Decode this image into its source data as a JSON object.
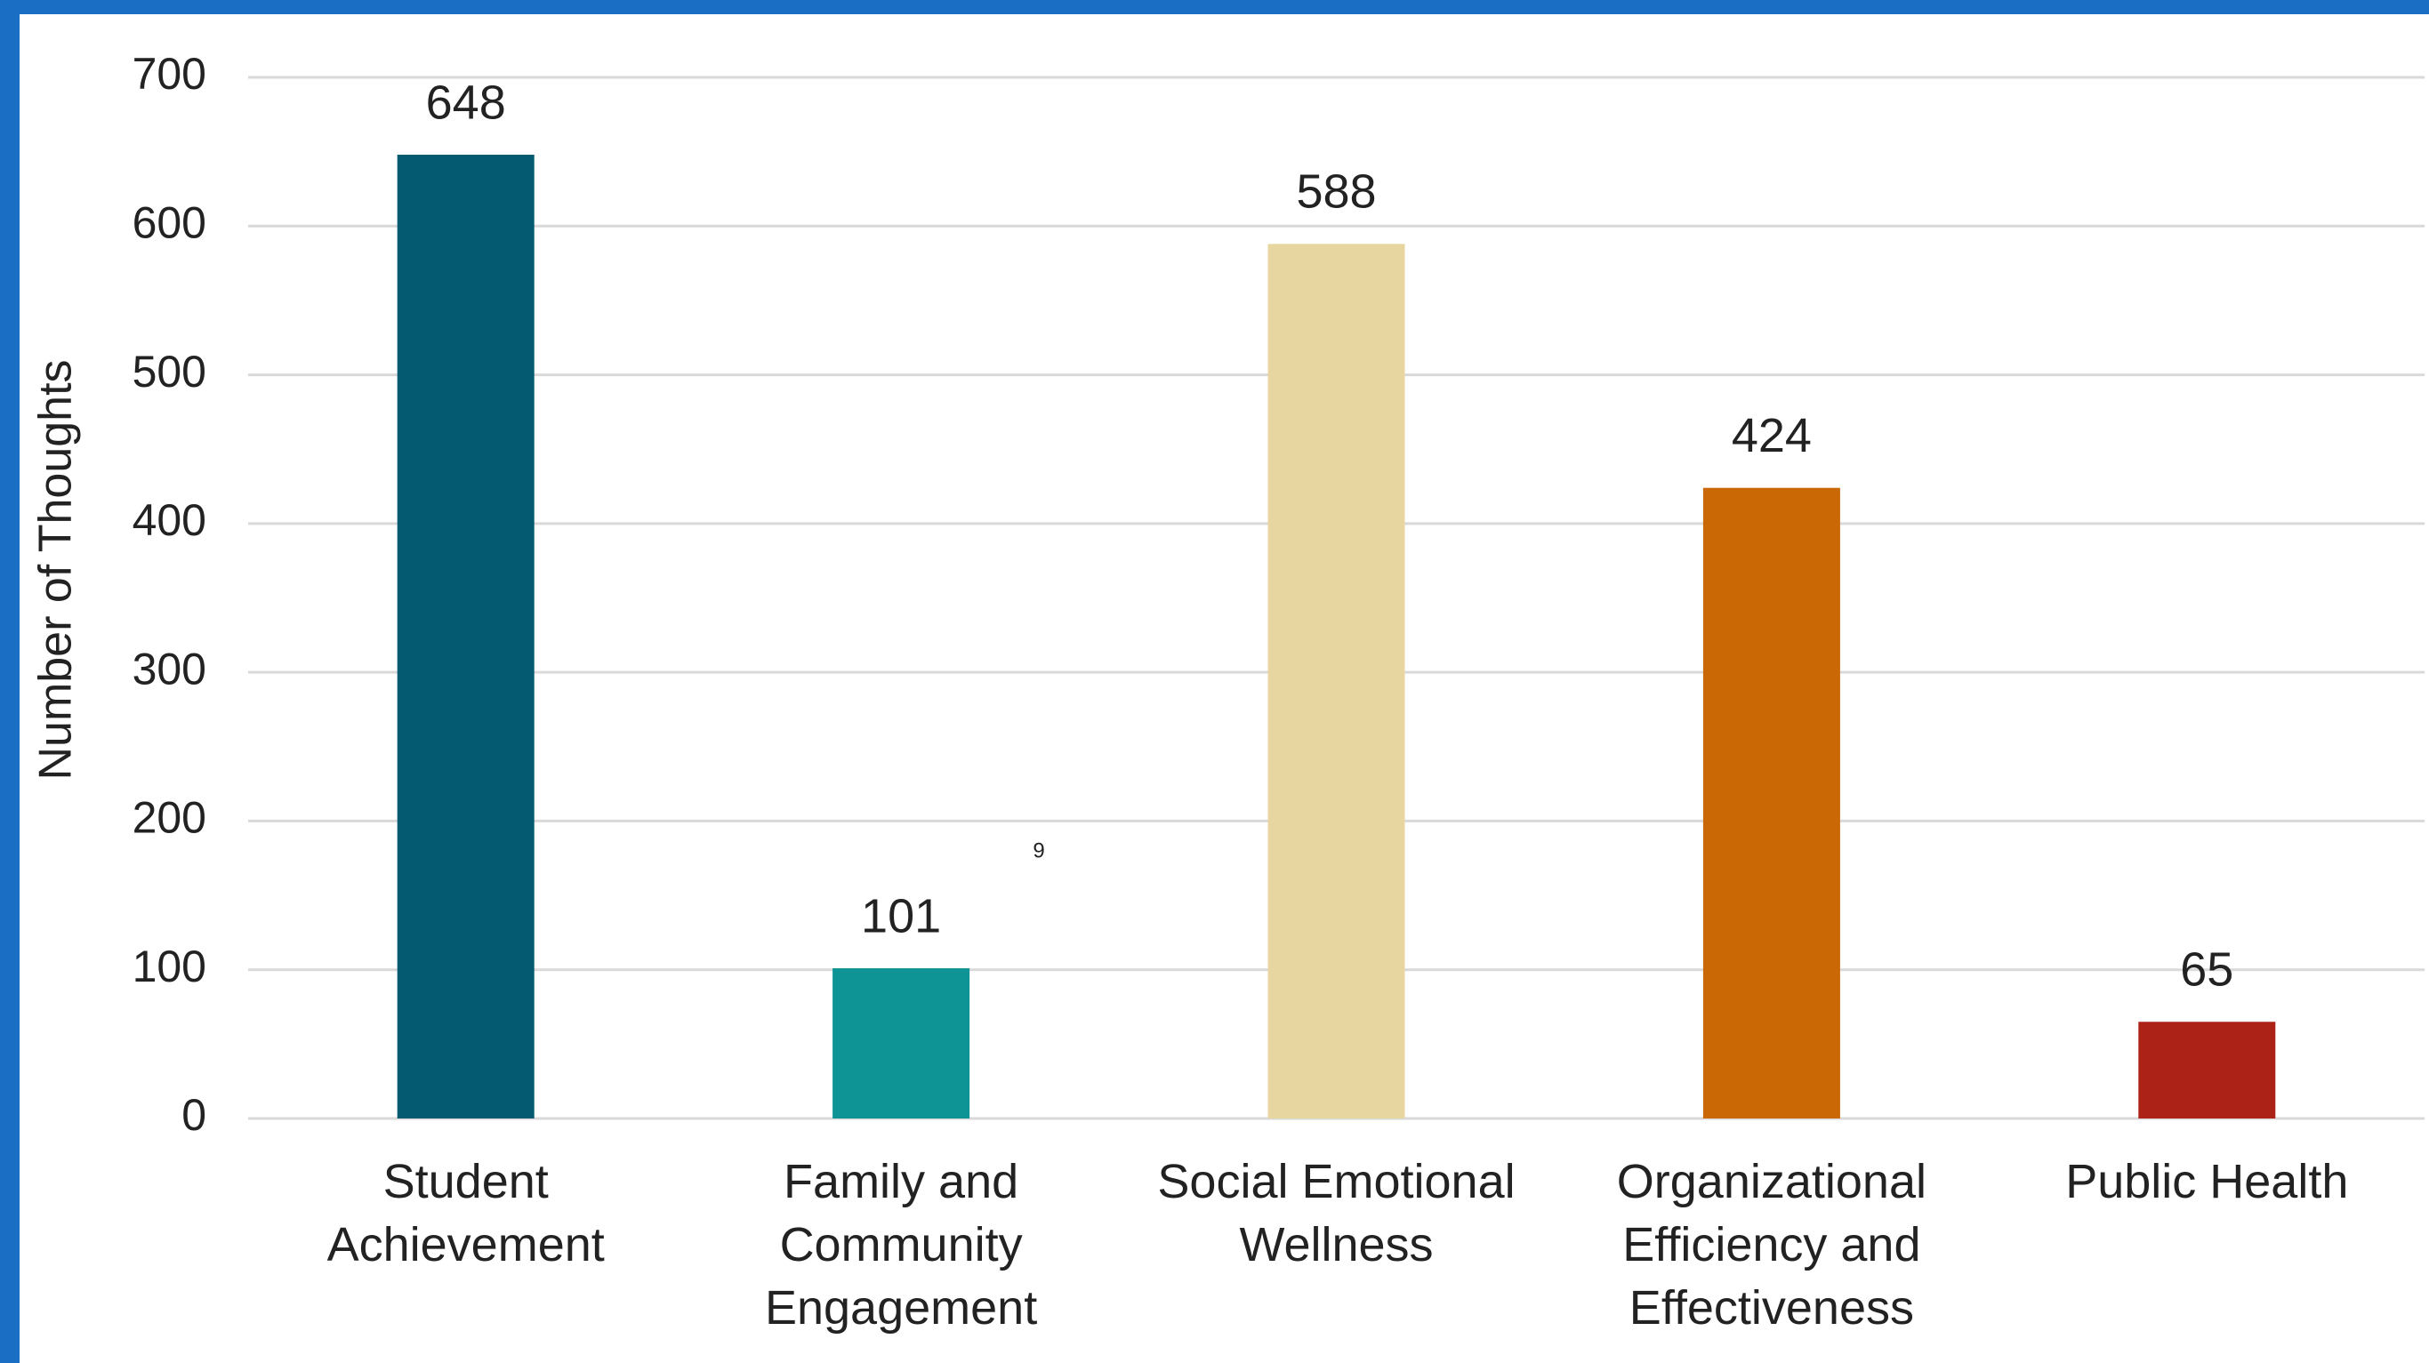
{
  "chart_data": {
    "type": "bar",
    "y_label": "Number of Thoughts",
    "annotation": "9",
    "categories": [
      "Student Achievement",
      "Family and Community Engagement",
      "Social Emotional Wellness",
      "Organizational Efficiency and Effectiveness",
      "Public Health"
    ],
    "values": [
      648,
      101,
      588,
      424,
      65
    ],
    "colors": [
      "#045a71",
      "#0e9494",
      "#e8d6a0",
      "#c96805",
      "#ad2216"
    ],
    "ylim": [
      0,
      700
    ],
    "yticks": [
      0,
      100,
      200,
      300,
      400,
      500,
      600,
      700
    ],
    "grid": true
  }
}
